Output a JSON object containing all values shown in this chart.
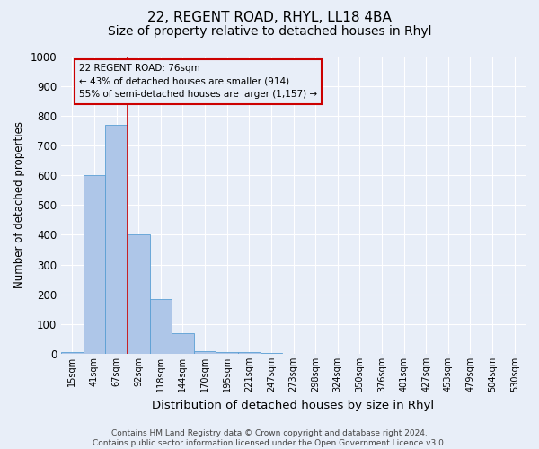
{
  "title1": "22, REGENT ROAD, RHYL, LL18 4BA",
  "title2": "Size of property relative to detached houses in Rhyl",
  "xlabel": "Distribution of detached houses by size in Rhyl",
  "ylabel": "Number of detached properties",
  "footnote": "Contains HM Land Registry data © Crown copyright and database right 2024.\nContains public sector information licensed under the Open Government Licence v3.0.",
  "categories": [
    "15sqm",
    "41sqm",
    "67sqm",
    "92sqm",
    "118sqm",
    "144sqm",
    "170sqm",
    "195sqm",
    "221sqm",
    "247sqm",
    "273sqm",
    "298sqm",
    "324sqm",
    "350sqm",
    "376sqm",
    "401sqm",
    "427sqm",
    "453sqm",
    "479sqm",
    "504sqm",
    "530sqm"
  ],
  "values": [
    5,
    600,
    770,
    400,
    185,
    70,
    10,
    5,
    7,
    3,
    1,
    0,
    0,
    0,
    0,
    0,
    0,
    0,
    0,
    0,
    0
  ],
  "bar_color": "#aec6e8",
  "bar_edge_color": "#5a9fd4",
  "vline_x": 2.5,
  "vline_color": "#cc0000",
  "ylim": [
    0,
    1000
  ],
  "yticks": [
    0,
    100,
    200,
    300,
    400,
    500,
    600,
    700,
    800,
    900,
    1000
  ],
  "annotation_text": "22 REGENT ROAD: 76sqm\n← 43% of detached houses are smaller (914)\n55% of semi-detached houses are larger (1,157) →",
  "annotation_box_color": "#cc0000",
  "background_color": "#e8eef8",
  "grid_color": "#ffffff",
  "title_fontsize": 11,
  "subtitle_fontsize": 10
}
